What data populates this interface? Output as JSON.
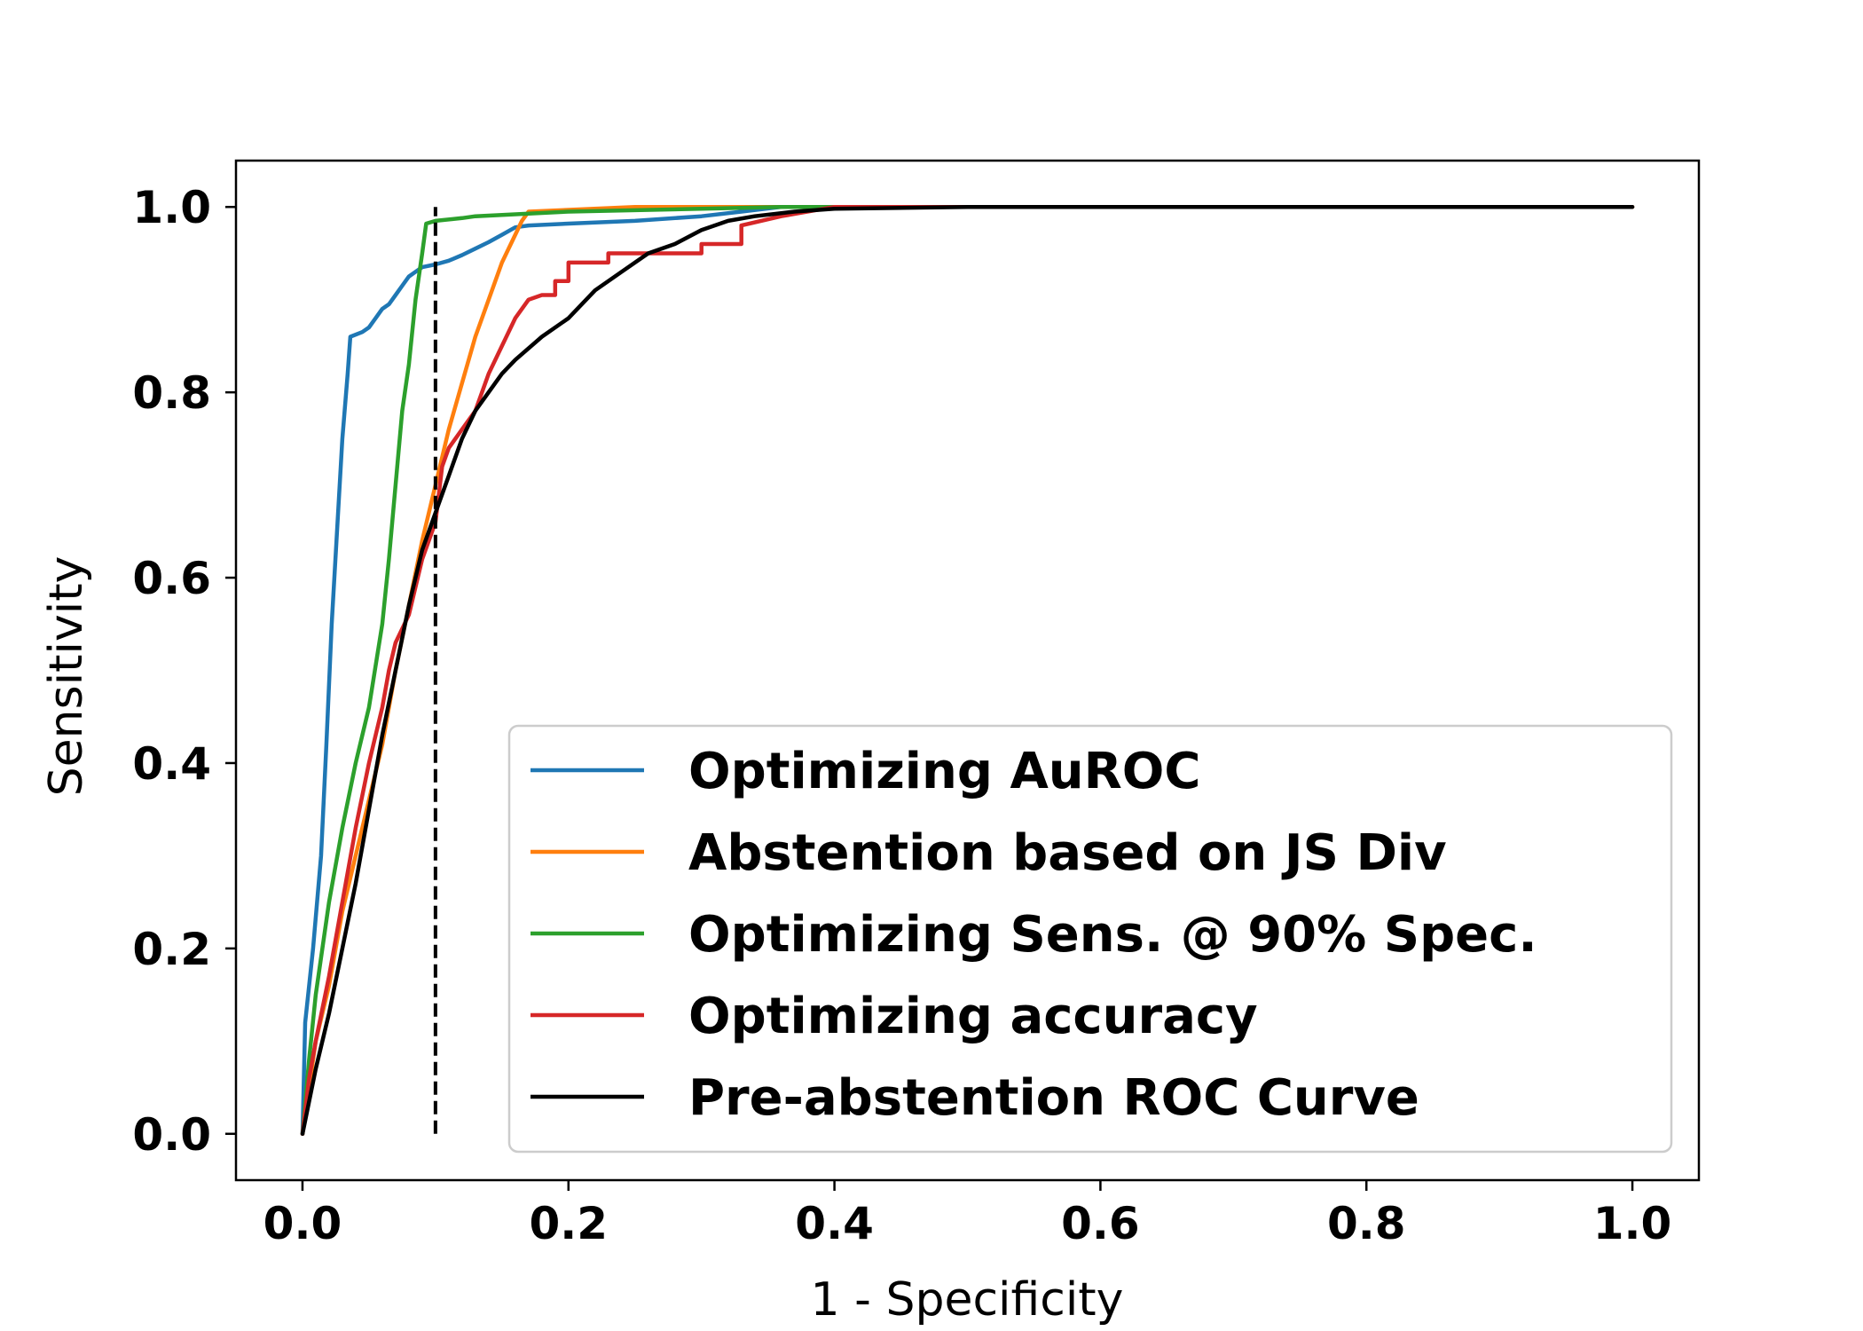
{
  "chart_data": {
    "type": "line",
    "title": "",
    "xlabel": "1 - Specificity",
    "ylabel": "Sensitivity",
    "xlim": [
      -0.05,
      1.05
    ],
    "ylim": [
      -0.05,
      1.05
    ],
    "xticks": [
      "0.0",
      "0.2",
      "0.4",
      "0.6",
      "0.8",
      "1.0"
    ],
    "yticks": [
      "0.0",
      "0.2",
      "0.4",
      "0.6",
      "0.8",
      "1.0"
    ],
    "xtick_values": [
      0,
      0.2,
      0.4,
      0.6,
      0.8,
      1.0
    ],
    "ytick_values": [
      0,
      0.2,
      0.4,
      0.6,
      0.8,
      1.0
    ],
    "grid": false,
    "legend_position": "bottom-right",
    "reference_line": {
      "x": 0.1,
      "y_range": [
        0,
        1.0
      ],
      "style": "dashed",
      "color": "#000000"
    },
    "series": [
      {
        "name": "Optimizing AuROC",
        "color": "#1f77b4",
        "points": [
          [
            0,
            0
          ],
          [
            0.002,
            0.12
          ],
          [
            0.008,
            0.2
          ],
          [
            0.014,
            0.3
          ],
          [
            0.018,
            0.42
          ],
          [
            0.022,
            0.55
          ],
          [
            0.026,
            0.65
          ],
          [
            0.03,
            0.75
          ],
          [
            0.034,
            0.82
          ],
          [
            0.036,
            0.86
          ],
          [
            0.045,
            0.865
          ],
          [
            0.05,
            0.87
          ],
          [
            0.055,
            0.88
          ],
          [
            0.06,
            0.89
          ],
          [
            0.065,
            0.895
          ],
          [
            0.07,
            0.905
          ],
          [
            0.075,
            0.915
          ],
          [
            0.08,
            0.925
          ],
          [
            0.085,
            0.93
          ],
          [
            0.09,
            0.935
          ],
          [
            0.1,
            0.938
          ],
          [
            0.11,
            0.942
          ],
          [
            0.12,
            0.948
          ],
          [
            0.13,
            0.955
          ],
          [
            0.14,
            0.962
          ],
          [
            0.15,
            0.97
          ],
          [
            0.16,
            0.978
          ],
          [
            0.17,
            0.98
          ],
          [
            0.2,
            0.982
          ],
          [
            0.25,
            0.985
          ],
          [
            0.3,
            0.99
          ],
          [
            0.33,
            0.995
          ],
          [
            0.36,
            1.0
          ],
          [
            1.0,
            1.0
          ]
        ]
      },
      {
        "name": "Abstention based on JS Div",
        "color": "#ff7f0e",
        "points": [
          [
            0,
            0
          ],
          [
            0.005,
            0.05
          ],
          [
            0.01,
            0.1
          ],
          [
            0.02,
            0.16
          ],
          [
            0.03,
            0.24
          ],
          [
            0.04,
            0.3
          ],
          [
            0.05,
            0.36
          ],
          [
            0.06,
            0.42
          ],
          [
            0.07,
            0.5
          ],
          [
            0.08,
            0.57
          ],
          [
            0.09,
            0.64
          ],
          [
            0.1,
            0.7
          ],
          [
            0.11,
            0.76
          ],
          [
            0.12,
            0.81
          ],
          [
            0.13,
            0.86
          ],
          [
            0.14,
            0.9
          ],
          [
            0.15,
            0.94
          ],
          [
            0.16,
            0.97
          ],
          [
            0.165,
            0.985
          ],
          [
            0.17,
            0.995
          ],
          [
            0.25,
            1.0
          ],
          [
            1.0,
            1.0
          ]
        ]
      },
      {
        "name": "Optimizing Sens. @ 90% Spec.",
        "color": "#2ca02c",
        "points": [
          [
            0,
            0
          ],
          [
            0.005,
            0.08
          ],
          [
            0.01,
            0.15
          ],
          [
            0.02,
            0.25
          ],
          [
            0.03,
            0.33
          ],
          [
            0.04,
            0.4
          ],
          [
            0.05,
            0.46
          ],
          [
            0.06,
            0.55
          ],
          [
            0.065,
            0.62
          ],
          [
            0.07,
            0.7
          ],
          [
            0.075,
            0.78
          ],
          [
            0.08,
            0.83
          ],
          [
            0.085,
            0.9
          ],
          [
            0.09,
            0.95
          ],
          [
            0.093,
            0.982
          ],
          [
            0.1,
            0.985
          ],
          [
            0.12,
            0.988
          ],
          [
            0.13,
            0.99
          ],
          [
            0.2,
            0.995
          ],
          [
            0.3,
            0.998
          ],
          [
            0.36,
            1.0
          ],
          [
            1.0,
            1.0
          ]
        ]
      },
      {
        "name": "Optimizing accuracy",
        "color": "#d62728",
        "points": [
          [
            0,
            0
          ],
          [
            0.005,
            0.06
          ],
          [
            0.01,
            0.1
          ],
          [
            0.02,
            0.17
          ],
          [
            0.03,
            0.25
          ],
          [
            0.04,
            0.33
          ],
          [
            0.05,
            0.4
          ],
          [
            0.06,
            0.46
          ],
          [
            0.065,
            0.5
          ],
          [
            0.07,
            0.53
          ],
          [
            0.08,
            0.56
          ],
          [
            0.09,
            0.62
          ],
          [
            0.1,
            0.66
          ],
          [
            0.105,
            0.72
          ],
          [
            0.11,
            0.74
          ],
          [
            0.12,
            0.76
          ],
          [
            0.13,
            0.78
          ],
          [
            0.14,
            0.82
          ],
          [
            0.15,
            0.85
          ],
          [
            0.16,
            0.88
          ],
          [
            0.17,
            0.9
          ],
          [
            0.18,
            0.905
          ],
          [
            0.19,
            0.905
          ],
          [
            0.19,
            0.92
          ],
          [
            0.2,
            0.92
          ],
          [
            0.2,
            0.94
          ],
          [
            0.23,
            0.94
          ],
          [
            0.23,
            0.95
          ],
          [
            0.3,
            0.95
          ],
          [
            0.3,
            0.96
          ],
          [
            0.33,
            0.96
          ],
          [
            0.33,
            0.98
          ],
          [
            0.36,
            0.99
          ],
          [
            0.4,
            1.0
          ],
          [
            1.0,
            1.0
          ]
        ]
      },
      {
        "name": "Pre-abstention ROC Curve",
        "color": "#000000",
        "points": [
          [
            0,
            0
          ],
          [
            0.01,
            0.07
          ],
          [
            0.02,
            0.13
          ],
          [
            0.03,
            0.2
          ],
          [
            0.04,
            0.27
          ],
          [
            0.05,
            0.35
          ],
          [
            0.06,
            0.43
          ],
          [
            0.07,
            0.5
          ],
          [
            0.08,
            0.57
          ],
          [
            0.09,
            0.63
          ],
          [
            0.1,
            0.67
          ],
          [
            0.11,
            0.71
          ],
          [
            0.12,
            0.75
          ],
          [
            0.13,
            0.78
          ],
          [
            0.14,
            0.8
          ],
          [
            0.15,
            0.82
          ],
          [
            0.16,
            0.835
          ],
          [
            0.18,
            0.86
          ],
          [
            0.2,
            0.88
          ],
          [
            0.22,
            0.91
          ],
          [
            0.24,
            0.93
          ],
          [
            0.26,
            0.95
          ],
          [
            0.28,
            0.96
          ],
          [
            0.3,
            0.975
          ],
          [
            0.32,
            0.985
          ],
          [
            0.34,
            0.99
          ],
          [
            0.37,
            0.995
          ],
          [
            0.4,
            0.998
          ],
          [
            0.5,
            1.0
          ],
          [
            1.0,
            1.0
          ]
        ]
      }
    ]
  }
}
